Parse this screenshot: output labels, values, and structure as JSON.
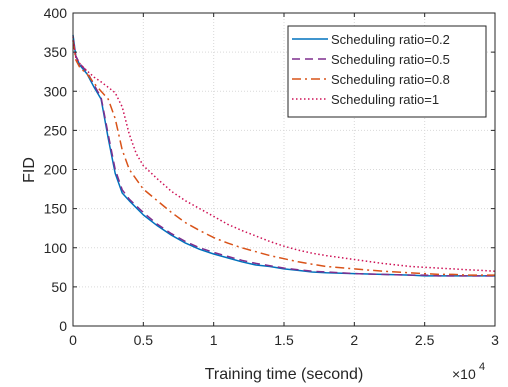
{
  "chart_data": {
    "type": "line",
    "xlabel": "Training time (second)",
    "ylabel": "FID",
    "x_exponent_label": "×10",
    "x_exponent_power": "4",
    "xlim": [
      0,
      3
    ],
    "ylim": [
      0,
      400
    ],
    "grid": true,
    "legend_position": "top-right",
    "x_ticks": [
      {
        "value": 0,
        "label": "0"
      },
      {
        "value": 0.5,
        "label": "0.5"
      },
      {
        "value": 1,
        "label": "1"
      },
      {
        "value": 1.5,
        "label": "1.5"
      },
      {
        "value": 2,
        "label": "2"
      },
      {
        "value": 2.5,
        "label": "2.5"
      },
      {
        "value": 3,
        "label": "3"
      }
    ],
    "y_ticks": [
      {
        "value": 0,
        "label": "0"
      },
      {
        "value": 50,
        "label": "50"
      },
      {
        "value": 100,
        "label": "100"
      },
      {
        "value": 150,
        "label": "150"
      },
      {
        "value": 200,
        "label": "200"
      },
      {
        "value": 250,
        "label": "250"
      },
      {
        "value": 300,
        "label": "300"
      },
      {
        "value": 350,
        "label": "350"
      },
      {
        "value": 400,
        "label": "400"
      }
    ],
    "series": [
      {
        "name": "Scheduling ratio=0.2",
        "color": "#0072BD",
        "dash": "solid",
        "x": [
          0,
          0.02,
          0.05,
          0.1,
          0.15,
          0.2,
          0.25,
          0.3,
          0.35,
          0.4,
          0.5,
          0.6,
          0.7,
          0.8,
          0.9,
          1.0,
          1.1,
          1.2,
          1.3,
          1.4,
          1.5,
          1.6,
          1.7,
          1.8,
          2.0,
          2.2,
          2.4,
          2.5,
          2.6,
          2.7,
          2.8,
          2.9,
          3.0
        ],
        "y": [
          372,
          345,
          333,
          322,
          305,
          290,
          240,
          195,
          170,
          160,
          142,
          128,
          116,
          106,
          98,
          92,
          87,
          82,
          78,
          76,
          73,
          71,
          69,
          68,
          67,
          66,
          65,
          64,
          64,
          64,
          64,
          64,
          64
        ]
      },
      {
        "name": "Scheduling ratio=0.5",
        "color": "#7E2F8E",
        "dash": "dashed",
        "x": [
          0,
          0.02,
          0.05,
          0.1,
          0.15,
          0.2,
          0.25,
          0.3,
          0.35,
          0.4,
          0.5,
          0.6,
          0.7,
          0.8,
          0.9,
          1.0,
          1.1,
          1.2,
          1.3,
          1.4,
          1.5,
          1.6,
          1.7,
          1.8,
          2.0,
          2.2,
          2.4,
          2.5,
          2.6,
          2.7,
          2.8,
          2.9,
          3.0
        ],
        "y": [
          365,
          345,
          335,
          325,
          308,
          292,
          245,
          200,
          174,
          162,
          145,
          130,
          118,
          108,
          100,
          94,
          89,
          84,
          80,
          77,
          74,
          72,
          70,
          69,
          67,
          66,
          65,
          65,
          64,
          64,
          64,
          64,
          64
        ]
      },
      {
        "name": "Scheduling ratio=0.8",
        "color": "#D95319",
        "dash": "dashdot",
        "x": [
          0,
          0.02,
          0.05,
          0.1,
          0.15,
          0.2,
          0.25,
          0.3,
          0.35,
          0.4,
          0.5,
          0.6,
          0.7,
          0.8,
          0.9,
          1.0,
          1.1,
          1.2,
          1.3,
          1.4,
          1.5,
          1.6,
          1.7,
          1.8,
          2.0,
          2.2,
          2.4,
          2.5,
          2.6,
          2.7,
          2.8,
          2.9,
          3.0
        ],
        "y": [
          365,
          340,
          330,
          322,
          310,
          300,
          290,
          265,
          225,
          200,
          175,
          160,
          145,
          132,
          122,
          113,
          106,
          100,
          95,
          90,
          86,
          82,
          79,
          76,
          73,
          70,
          68,
          67,
          66,
          66,
          65,
          65,
          65
        ]
      },
      {
        "name": "Scheduling ratio=1",
        "color": "#CE1256",
        "dash": "dotted",
        "x": [
          0,
          0.02,
          0.05,
          0.1,
          0.15,
          0.2,
          0.25,
          0.3,
          0.35,
          0.4,
          0.45,
          0.5,
          0.6,
          0.7,
          0.8,
          0.9,
          1.0,
          1.1,
          1.2,
          1.3,
          1.4,
          1.5,
          1.6,
          1.7,
          1.8,
          2.0,
          2.2,
          2.4,
          2.5,
          2.6,
          2.7,
          2.8,
          2.9,
          3.0
        ],
        "y": [
          370,
          343,
          335,
          326,
          318,
          312,
          305,
          298,
          280,
          245,
          220,
          205,
          188,
          172,
          160,
          150,
          140,
          130,
          122,
          115,
          108,
          102,
          97,
          93,
          90,
          85,
          80,
          76,
          75,
          74,
          73,
          72,
          71,
          70
        ]
      }
    ]
  }
}
